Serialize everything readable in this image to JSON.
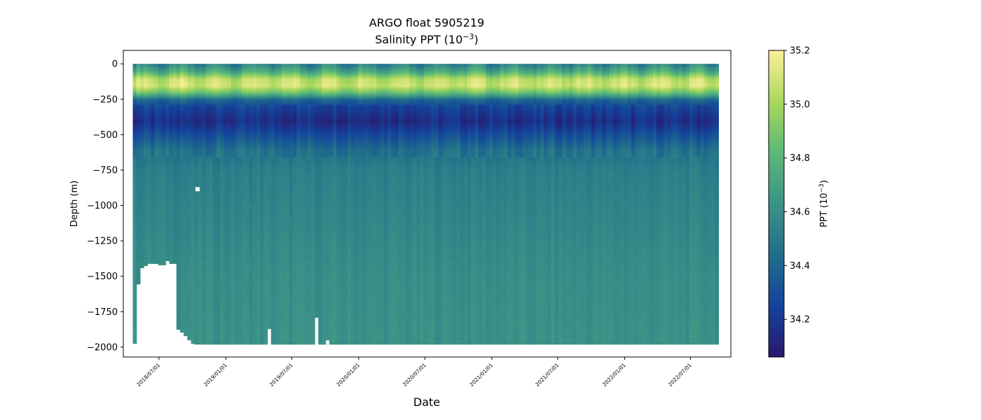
{
  "chart_data": {
    "type": "heatmap",
    "title": "ARGO float 5905219",
    "subtitle_prefix": "Salinity PPT (10",
    "subtitle_exp": "−3",
    "subtitle_suffix": ")",
    "xlabel": "Date",
    "ylabel": "Depth (m)",
    "colorbar_label_prefix": "PPT (10",
    "colorbar_label_exp": "−3",
    "colorbar_label_suffix": ")",
    "colormap": "haline",
    "colormap_stops": [
      "#2a186c",
      "#14439c",
      "#206e8b",
      "#3c9387",
      "#5ab978",
      "#aad85c",
      "#fdef9a"
    ],
    "x_start": "2018-04-20",
    "x_end": "2022-09-15",
    "xlim": [
      "2018-03-25",
      "2022-10-20"
    ],
    "x_tick_labels": [
      "2018/07/01",
      "2019/01/01",
      "2019/07/01",
      "2020/01/01",
      "2020/07/01",
      "2021/01/01",
      "2021/07/01",
      "2022/01/01",
      "2022/07/01"
    ],
    "ylim": [
      -2070,
      95
    ],
    "y_ticks": [
      0,
      -250,
      -500,
      -750,
      -1000,
      -1250,
      -1500,
      -1750,
      -2000
    ],
    "y_tick_labels": [
      "0",
      "−250",
      "−500",
      "−750",
      "−1000",
      "−1250",
      "−1500",
      "−1750",
      "−2000"
    ],
    "colorbar_range": [
      34.06,
      35.2
    ],
    "colorbar_ticks": [
      34.2,
      34.4,
      34.6,
      34.8,
      35.0,
      35.2
    ],
    "colorbar_tick_labels": [
      "34.2",
      "34.4",
      "34.6",
      "34.8",
      "35.0",
      "35.2"
    ],
    "profile_interval_days": 10,
    "salinity_profile": {
      "depth": [
        0,
        -50,
        -100,
        -150,
        -200,
        -250,
        -300,
        -400,
        -500,
        -600,
        -750,
        -1000,
        -1500,
        -2000
      ],
      "salinity": [
        34.55,
        34.75,
        35.05,
        35.1,
        34.85,
        34.4,
        34.25,
        34.15,
        34.3,
        34.45,
        34.52,
        34.55,
        34.6,
        34.62
      ]
    },
    "max_depth_segments": [
      {
        "from": "2018-04-20",
        "to": "2018-04-24",
        "depth": -1975
      },
      {
        "from": "2018-04-25",
        "to": "2018-04-29",
        "depth": -1555
      },
      {
        "from": "2018-04-30",
        "to": "2018-05-12",
        "depth": -1440
      },
      {
        "from": "2018-05-13",
        "to": "2018-05-27",
        "depth": -1425
      },
      {
        "from": "2018-05-28",
        "to": "2018-06-27",
        "depth": -1410
      },
      {
        "from": "2018-06-28",
        "to": "2018-07-10",
        "depth": -1420
      },
      {
        "from": "2018-07-11",
        "to": "2018-07-19",
        "depth": -1390
      },
      {
        "from": "2018-07-20",
        "to": "2018-08-08",
        "depth": -1410
      },
      {
        "from": "2018-08-09",
        "to": "2018-08-18",
        "depth": -1875
      },
      {
        "from": "2018-08-19",
        "to": "2018-08-28",
        "depth": -1895
      },
      {
        "from": "2018-08-29",
        "to": "2018-09-08",
        "depth": -1920
      },
      {
        "from": "2018-09-09",
        "to": "2018-09-18",
        "depth": -1950
      },
      {
        "from": "2018-09-19",
        "to": "2018-09-30",
        "depth": -1975
      },
      {
        "from": "2018-10-01",
        "to": "2019-04-16",
        "depth": -1980
      },
      {
        "from": "2019-04-17",
        "to": "2019-04-26",
        "depth": -1870
      },
      {
        "from": "2019-04-27",
        "to": "2019-08-31",
        "depth": -1980
      },
      {
        "from": "2019-09-01",
        "to": "2019-09-10",
        "depth": -1790
      },
      {
        "from": "2019-09-11",
        "to": "2019-09-25",
        "depth": -1980
      },
      {
        "from": "2019-09-26",
        "to": "2019-10-05",
        "depth": -1950
      },
      {
        "from": "2019-10-06",
        "to": "2022-09-15",
        "depth": -1980
      }
    ],
    "data_gaps": [
      {
        "date": "2018-10-15",
        "depth": -885
      }
    ]
  }
}
